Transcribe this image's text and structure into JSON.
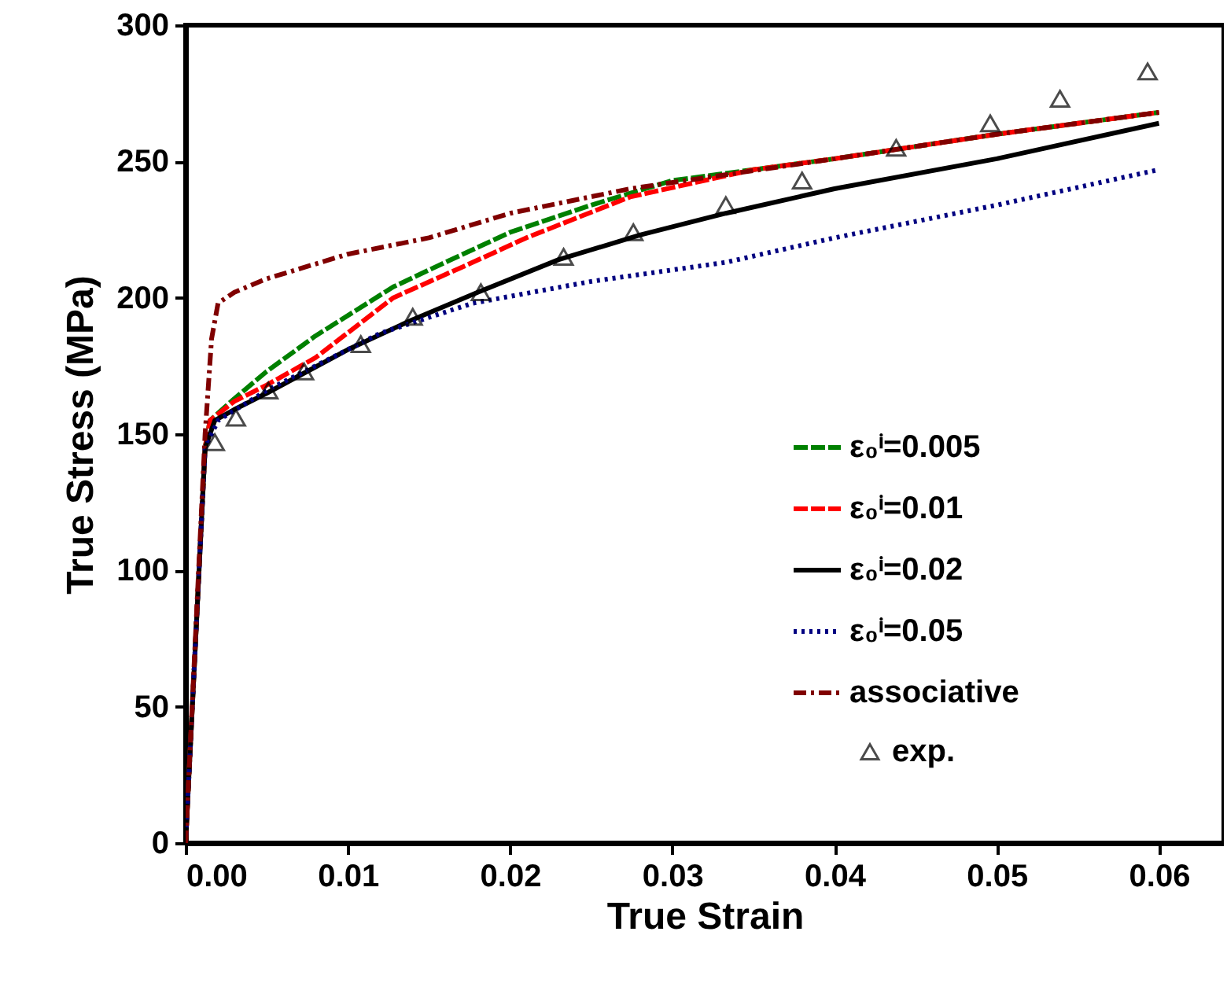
{
  "chart_data": {
    "type": "line",
    "xlabel": "True Strain",
    "ylabel": "True Stress (MPa)",
    "xlim": [
      0,
      0.064
    ],
    "ylim": [
      0,
      300
    ],
    "xticks": [
      {
        "value": 0,
        "label": "0.00"
      },
      {
        "value": 0.01,
        "label": "0.01"
      },
      {
        "value": 0.02,
        "label": "0.02"
      },
      {
        "value": 0.03,
        "label": "0.03"
      },
      {
        "value": 0.04,
        "label": "0.04"
      },
      {
        "value": 0.05,
        "label": "0.05"
      },
      {
        "value": 0.06,
        "label": "0.06"
      }
    ],
    "yticks": [
      0,
      50,
      100,
      150,
      200,
      250,
      300
    ],
    "grid": false,
    "legend": "bottom right",
    "series": [
      {
        "name": "ε₀ⁱ=0.005",
        "color": "#008000",
        "line_style": "dashed",
        "marker": "none",
        "x": [
          0,
          0.0012,
          0.0015,
          0.003,
          0.005,
          0.008,
          0.0128,
          0.016,
          0.02,
          0.025,
          0.03,
          0.04,
          0.05,
          0.06
        ],
        "values": [
          0,
          145,
          155,
          163,
          173,
          186,
          204,
          213,
          224,
          234,
          243,
          251,
          260,
          268
        ]
      },
      {
        "name": "ε₀ⁱ=0.01",
        "color": "#ff0000",
        "line_style": "dashed",
        "marker": "none",
        "x": [
          0,
          0.0012,
          0.0015,
          0.003,
          0.005,
          0.008,
          0.0128,
          0.0177,
          0.021,
          0.0274,
          0.035,
          0.04,
          0.05,
          0.06
        ],
        "values": [
          0,
          145,
          155,
          162,
          168,
          178,
          200,
          213,
          222,
          237,
          247,
          251,
          260,
          268
        ]
      },
      {
        "name": "ε₀ⁱ=0.02",
        "color": "#000000",
        "line_style": "solid",
        "marker": "none",
        "x": [
          0,
          0.0012,
          0.0018,
          0.003,
          0.005,
          0.0075,
          0.01,
          0.014,
          0.018,
          0.023,
          0.028,
          0.0333,
          0.04,
          0.05,
          0.06
        ],
        "values": [
          0,
          145,
          155,
          159,
          165,
          173,
          181,
          192,
          202,
          214,
          223,
          231,
          240,
          251,
          264
        ]
      },
      {
        "name": "ε₀ⁱ=0.05",
        "color": "#000080",
        "line_style": "dotted",
        "marker": "none",
        "x": [
          0,
          0.0012,
          0.002,
          0.005,
          0.008,
          0.012,
          0.0177,
          0.025,
          0.0333,
          0.04,
          0.05,
          0.06
        ],
        "values": [
          0,
          145,
          155,
          166,
          175,
          187,
          198,
          206,
          213,
          222,
          234,
          247
        ]
      },
      {
        "name": "associative",
        "color": "#800000",
        "line_style": "dashdot",
        "marker": "none",
        "x": [
          0,
          0.0012,
          0.0016,
          0.002,
          0.003,
          0.005,
          0.01,
          0.015,
          0.02,
          0.0274,
          0.04,
          0.05,
          0.06
        ],
        "values": [
          0,
          150,
          185,
          198,
          202,
          207,
          216,
          222,
          231,
          240,
          251,
          260,
          268
        ]
      },
      {
        "name": "exp.",
        "color": "#000000",
        "type": "scatter",
        "marker": "triangle",
        "x": [
          0.0018,
          0.0031,
          0.0051,
          0.0073,
          0.0108,
          0.014,
          0.0182,
          0.0233,
          0.0276,
          0.0333,
          0.038,
          0.0438,
          0.0496,
          0.0539,
          0.0593
        ],
        "values": [
          147,
          156,
          166,
          173,
          183,
          193,
          202,
          215,
          224,
          234,
          243,
          255,
          264,
          273,
          283
        ]
      }
    ]
  }
}
